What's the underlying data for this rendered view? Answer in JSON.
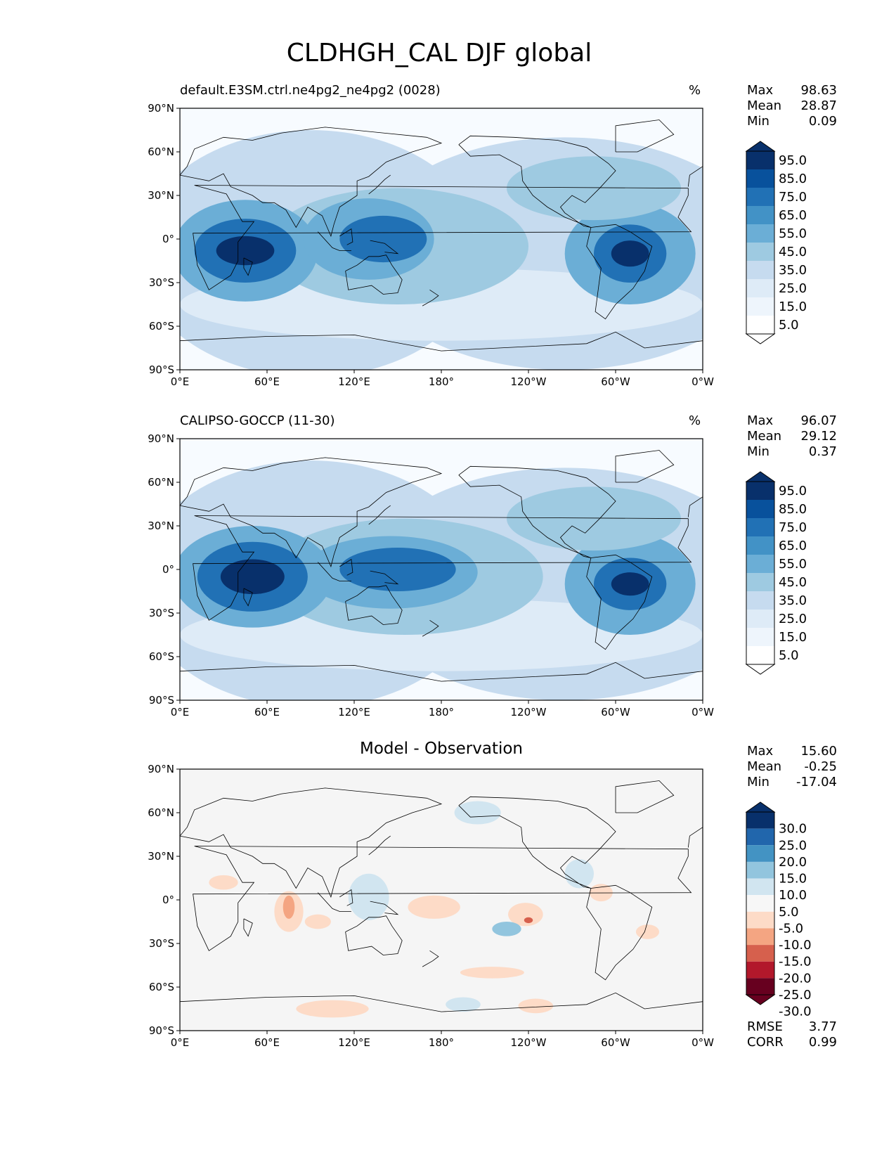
{
  "page_title": "CLDHGH_CAL DJF global",
  "axes": {
    "x_ticks": [
      "0°E",
      "60°E",
      "120°E",
      "180°",
      "120°W",
      "60°W",
      "0°W"
    ],
    "y_ticks": [
      "90°N",
      "60°N",
      "30°N",
      "0°",
      "30°S",
      "60°S",
      "90°S"
    ]
  },
  "panels": [
    {
      "title": "default.E3SM.ctrl.ne4pg2_ne4pg2 (0028)",
      "units": "%",
      "stats": [
        {
          "label": "Max",
          "value": "98.63"
        },
        {
          "label": "Mean",
          "value": "28.87"
        },
        {
          "label": "Min",
          "value": "0.09"
        }
      ],
      "colorbar": {
        "labels": [
          "95.0",
          "85.0",
          "75.0",
          "65.0",
          "55.0",
          "45.0",
          "35.0",
          "25.0",
          "15.0",
          "5.0"
        ],
        "colors": [
          "#08306b",
          "#08519c",
          "#2171b5",
          "#4292c6",
          "#6baed6",
          "#9ecae1",
          "#c6dbef",
          "#deebf7",
          "#eef5fc",
          "#ffffff"
        ]
      },
      "field": {
        "background": "#f7fbff",
        "blobs": [
          {
            "lon": 90,
            "lat": -10,
            "rx": 120,
            "ry": 85,
            "color": "#c6dbef"
          },
          {
            "lon": 265,
            "lat": -10,
            "rx": 140,
            "ry": 80,
            "color": "#c6dbef"
          },
          {
            "lon": 180,
            "lat": -45,
            "rx": 180,
            "ry": 25,
            "color": "#deebf7"
          },
          {
            "lon": 150,
            "lat": -5,
            "rx": 90,
            "ry": 40,
            "color": "#9ecae1"
          },
          {
            "lon": 45,
            "lat": -8,
            "rx": 50,
            "ry": 35,
            "color": "#6baed6"
          },
          {
            "lon": 130,
            "lat": 0,
            "rx": 45,
            "ry": 28,
            "color": "#6baed6"
          },
          {
            "lon": 310,
            "lat": -10,
            "rx": 45,
            "ry": 35,
            "color": "#6baed6"
          },
          {
            "lon": 285,
            "lat": 35,
            "rx": 60,
            "ry": 22,
            "color": "#9ecae1"
          },
          {
            "lon": 45,
            "lat": -8,
            "rx": 35,
            "ry": 22,
            "color": "#2171b5"
          },
          {
            "lon": 140,
            "lat": 0,
            "rx": 30,
            "ry": 16,
            "color": "#2171b5"
          },
          {
            "lon": 310,
            "lat": -10,
            "rx": 25,
            "ry": 20,
            "color": "#2171b5"
          },
          {
            "lon": 45,
            "lat": -8,
            "rx": 20,
            "ry": 10,
            "color": "#08306b"
          },
          {
            "lon": 310,
            "lat": -10,
            "rx": 13,
            "ry": 9,
            "color": "#08306b"
          }
        ]
      }
    },
    {
      "title": "CALIPSO-GOCCP (11-30)",
      "units": "%",
      "stats": [
        {
          "label": "Max",
          "value": "96.07"
        },
        {
          "label": "Mean",
          "value": "29.12"
        },
        {
          "label": "Min",
          "value": "0.37"
        }
      ],
      "colorbar": {
        "labels": [
          "95.0",
          "85.0",
          "75.0",
          "65.0",
          "55.0",
          "45.0",
          "35.0",
          "25.0",
          "15.0",
          "5.0"
        ],
        "colors": [
          "#08306b",
          "#08519c",
          "#2171b5",
          "#4292c6",
          "#6baed6",
          "#9ecae1",
          "#c6dbef",
          "#deebf7",
          "#eef5fc",
          "#ffffff"
        ]
      },
      "field": {
        "background": "#f7fbff",
        "blobs": [
          {
            "lon": 90,
            "lat": -10,
            "rx": 120,
            "ry": 85,
            "color": "#c6dbef"
          },
          {
            "lon": 265,
            "lat": -10,
            "rx": 140,
            "ry": 80,
            "color": "#c6dbef"
          },
          {
            "lon": 180,
            "lat": -45,
            "rx": 180,
            "ry": 25,
            "color": "#deebf7"
          },
          {
            "lon": 155,
            "lat": -5,
            "rx": 95,
            "ry": 40,
            "color": "#9ecae1"
          },
          {
            "lon": 50,
            "lat": -5,
            "rx": 55,
            "ry": 35,
            "color": "#6baed6"
          },
          {
            "lon": 145,
            "lat": -2,
            "rx": 60,
            "ry": 25,
            "color": "#6baed6"
          },
          {
            "lon": 310,
            "lat": -10,
            "rx": 45,
            "ry": 35,
            "color": "#6baed6"
          },
          {
            "lon": 285,
            "lat": 35,
            "rx": 60,
            "ry": 22,
            "color": "#9ecae1"
          },
          {
            "lon": 50,
            "lat": -5,
            "rx": 38,
            "ry": 24,
            "color": "#2171b5"
          },
          {
            "lon": 150,
            "lat": 0,
            "rx": 40,
            "ry": 15,
            "color": "#2171b5"
          },
          {
            "lon": 310,
            "lat": -10,
            "rx": 25,
            "ry": 18,
            "color": "#2171b5"
          },
          {
            "lon": 50,
            "lat": -5,
            "rx": 22,
            "ry": 12,
            "color": "#08306b"
          },
          {
            "lon": 310,
            "lat": -10,
            "rx": 13,
            "ry": 8,
            "color": "#08306b"
          }
        ]
      }
    },
    {
      "title": "Model - Observation",
      "units": "",
      "stats": [
        {
          "label": "Max",
          "value": "15.60"
        },
        {
          "label": "Mean",
          "value": "-0.25"
        },
        {
          "label": "Min",
          "value": "-17.04"
        }
      ],
      "extra_stats": [
        {
          "label": "RMSE",
          "value": "3.77"
        },
        {
          "label": "CORR",
          "value": "0.99"
        }
      ],
      "colorbar": {
        "labels": [
          "30.0",
          "25.0",
          "20.0",
          "15.0",
          "10.0",
          "5.0",
          "-5.0",
          "-10.0",
          "-15.0",
          "-20.0",
          "-25.0",
          "-30.0"
        ],
        "colors": [
          "#08306b",
          "#2166ac",
          "#4393c3",
          "#92c5de",
          "#d1e5f0",
          "#f7f7f7",
          "#fddbc7",
          "#f4a582",
          "#d6604d",
          "#b2182b",
          "#67001f"
        ]
      },
      "field": {
        "background": "#f5f5f5",
        "blobs": [
          {
            "lon": 75,
            "lat": -8,
            "rx": 10,
            "ry": 14,
            "color": "#fddbc7"
          },
          {
            "lon": 30,
            "lat": 12,
            "rx": 10,
            "ry": 5,
            "color": "#fddbc7"
          },
          {
            "lon": 95,
            "lat": -15,
            "rx": 9,
            "ry": 5,
            "color": "#fddbc7"
          },
          {
            "lon": 105,
            "lat": -75,
            "rx": 25,
            "ry": 6,
            "color": "#fddbc7"
          },
          {
            "lon": 175,
            "lat": -5,
            "rx": 18,
            "ry": 8,
            "color": "#fddbc7"
          },
          {
            "lon": 238,
            "lat": -10,
            "rx": 12,
            "ry": 8,
            "color": "#fddbc7"
          },
          {
            "lon": 245,
            "lat": -73,
            "rx": 12,
            "ry": 5,
            "color": "#fddbc7"
          },
          {
            "lon": 290,
            "lat": 5,
            "rx": 8,
            "ry": 6,
            "color": "#fddbc7"
          },
          {
            "lon": 322,
            "lat": -22,
            "rx": 8,
            "ry": 5,
            "color": "#fddbc7"
          },
          {
            "lon": 215,
            "lat": -50,
            "rx": 22,
            "ry": 4,
            "color": "#fddbc7"
          },
          {
            "lon": 130,
            "lat": 2,
            "rx": 14,
            "ry": 16,
            "color": "#d1e5f0"
          },
          {
            "lon": 225,
            "lat": -20,
            "rx": 10,
            "ry": 5,
            "color": "#92c5de"
          },
          {
            "lon": 275,
            "lat": 18,
            "rx": 10,
            "ry": 10,
            "color": "#d1e5f0"
          },
          {
            "lon": 205,
            "lat": 60,
            "rx": 16,
            "ry": 8,
            "color": "#d1e5f0"
          },
          {
            "lon": 195,
            "lat": -72,
            "rx": 12,
            "ry": 5,
            "color": "#d1e5f0"
          },
          {
            "lon": 75,
            "lat": -5,
            "rx": 4,
            "ry": 8,
            "color": "#f4a582"
          },
          {
            "lon": 240,
            "lat": -14,
            "rx": 3,
            "ry": 2,
            "color": "#d6604d"
          }
        ]
      }
    }
  ]
}
